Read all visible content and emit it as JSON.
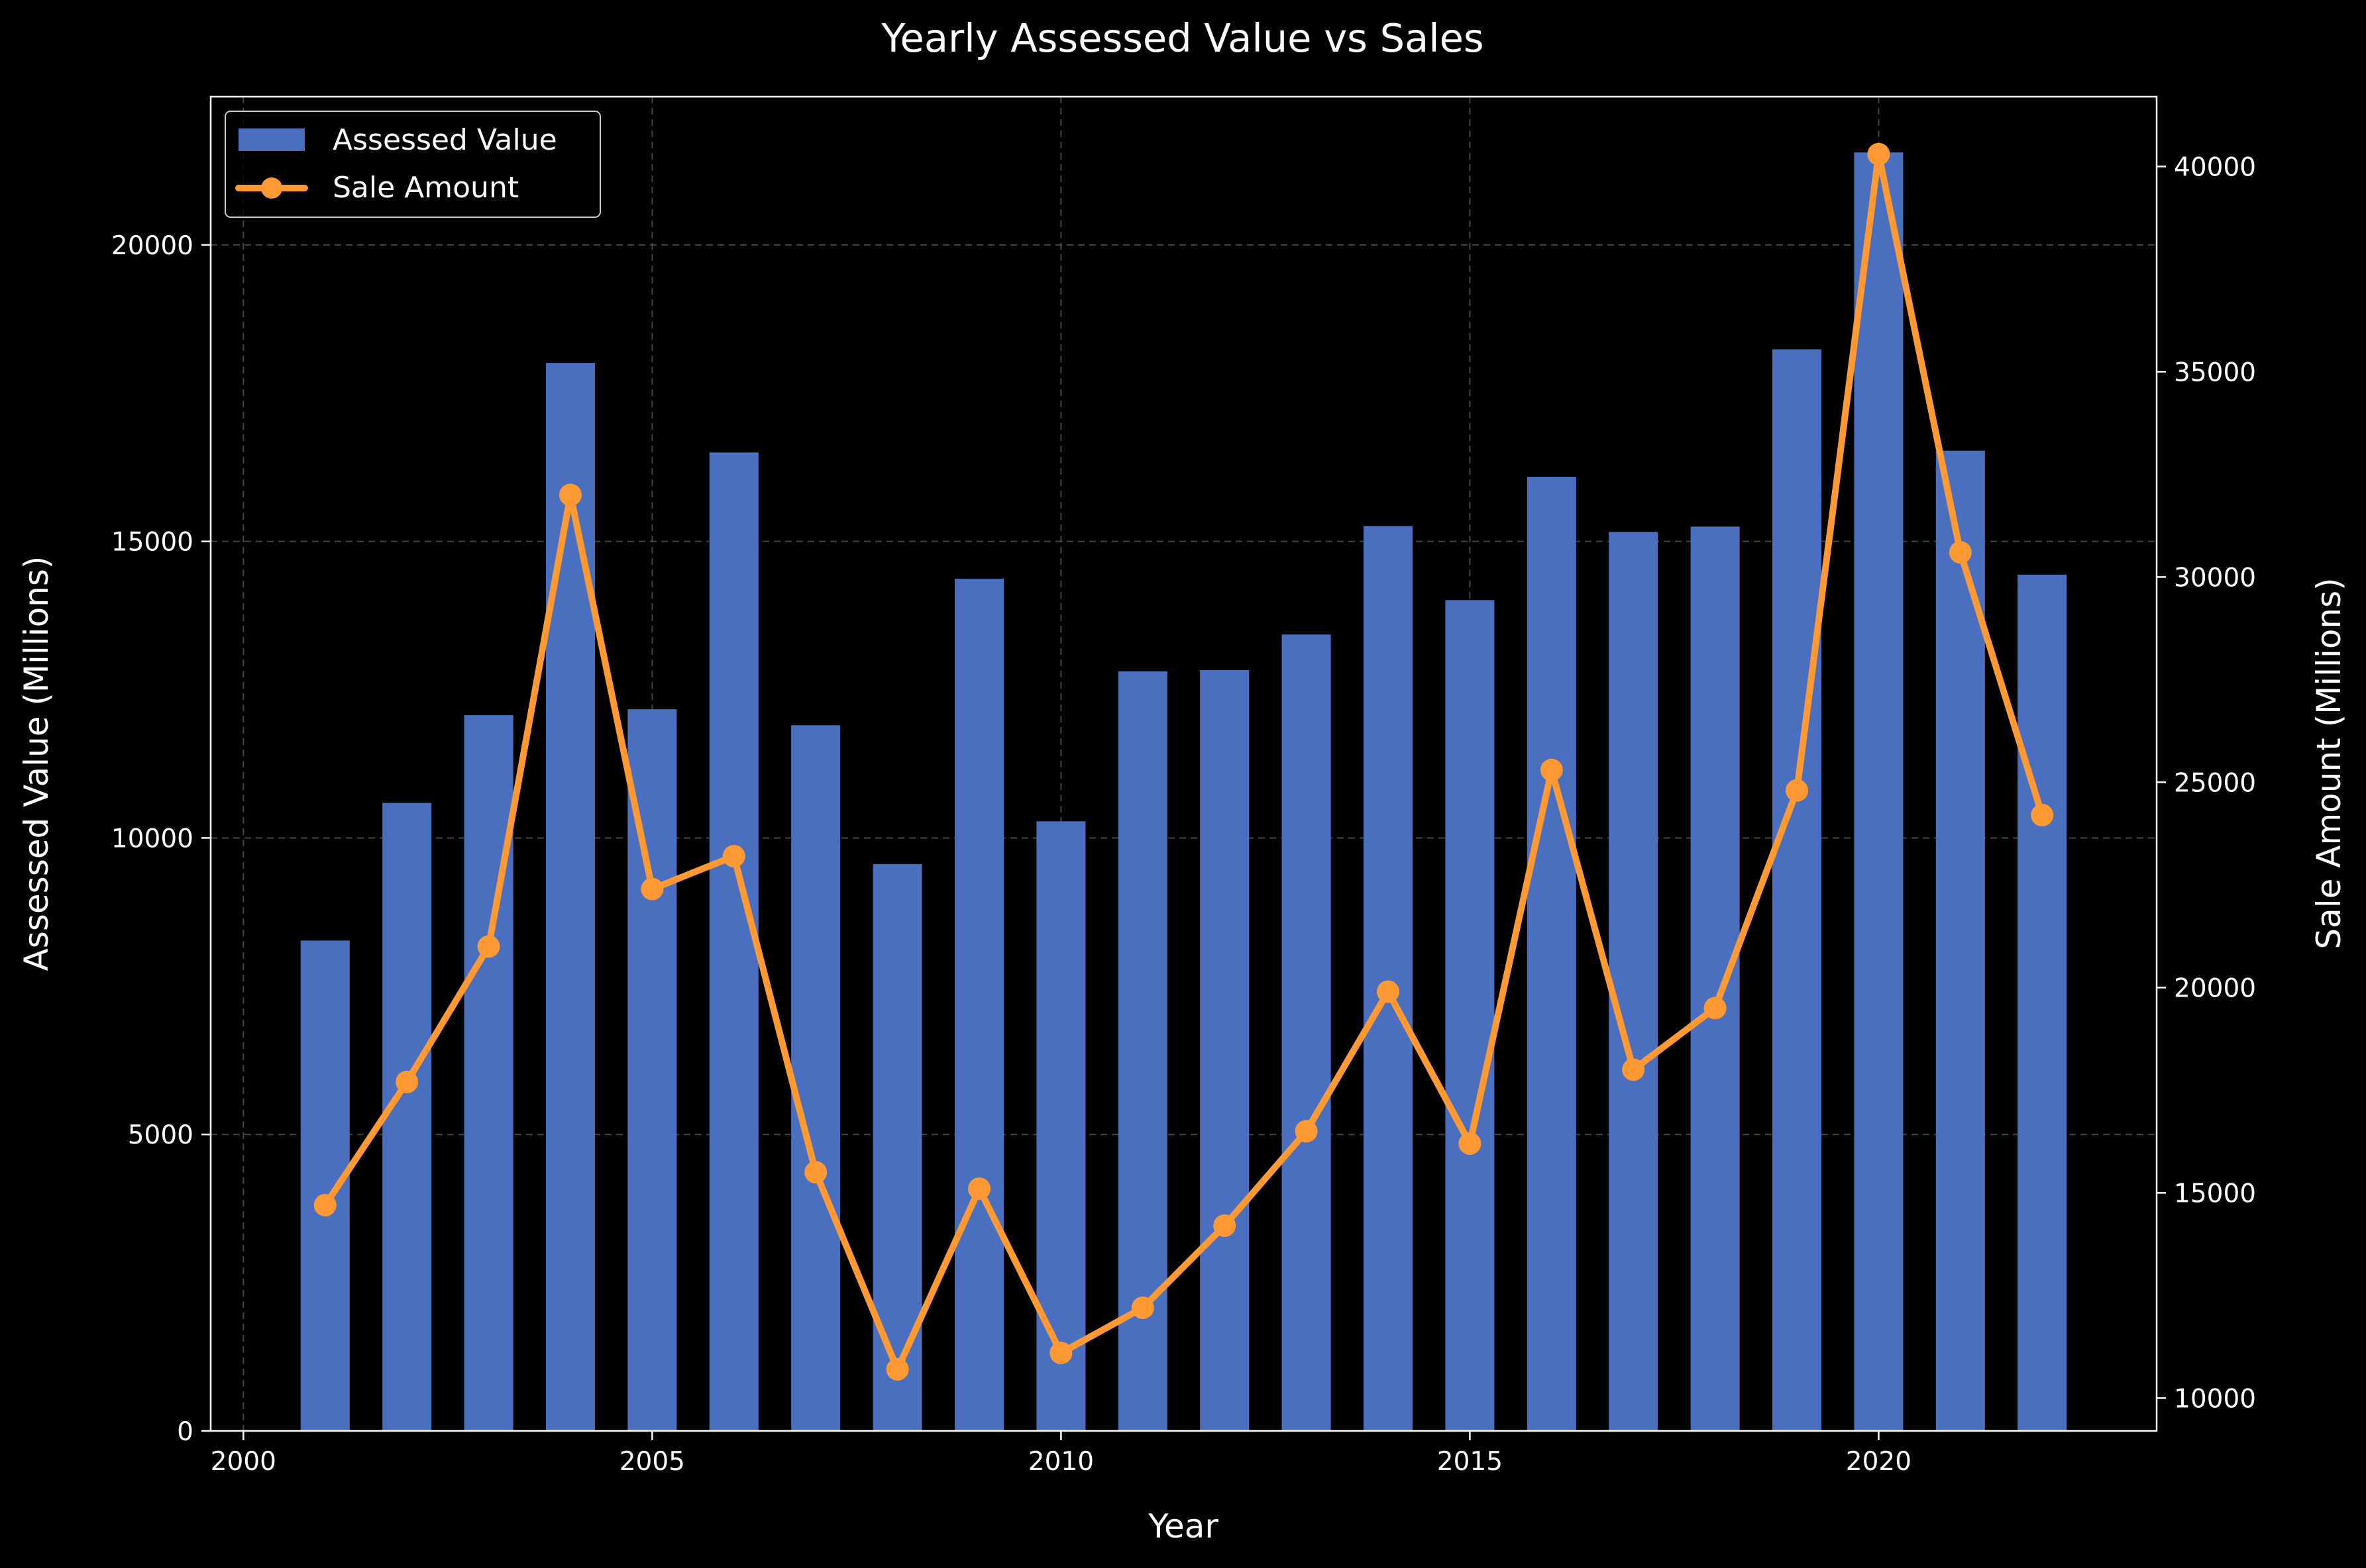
{
  "chart_data": {
    "type": "bar+line",
    "title": "Yearly Assessed Value vs Sales",
    "xlabel": "Year",
    "ylabel": "Assessed Value (Millions)",
    "y2label": "Sale Amount (Millions)",
    "xlim": [
      1999.6,
      2023.4
    ],
    "ylim": [
      0,
      22500
    ],
    "y2lim": [
      9200,
      41700
    ],
    "x_ticks": [
      2000,
      2005,
      2010,
      2015,
      2020
    ],
    "y_ticks": [
      0,
      5000,
      10000,
      15000,
      20000
    ],
    "y2_ticks": [
      10000,
      15000,
      20000,
      25000,
      30000,
      35000,
      40000
    ],
    "grid": true,
    "legend_position": "top-left",
    "categories": [
      2001,
      2002,
      2003,
      2004,
      2005,
      2006,
      2007,
      2008,
      2009,
      2010,
      2011,
      2012,
      2013,
      2014,
      2015,
      2016,
      2017,
      2018,
      2019,
      2020,
      2021,
      2022
    ],
    "series": [
      {
        "name": "Assessed Value",
        "type": "bar",
        "axis": "left",
        "color": "#4a6fbf",
        "values": [
          8270,
          10590,
          12070,
          18010,
          12170,
          16500,
          11900,
          9560,
          14370,
          10280,
          12810,
          12830,
          13430,
          15260,
          14010,
          16090,
          15160,
          15250,
          18240,
          21560,
          16530,
          14440
        ]
      },
      {
        "name": "Sale Amount",
        "type": "line",
        "axis": "right",
        "color": "#ff9933",
        "values": [
          14700,
          17700,
          21000,
          32000,
          22400,
          23200,
          15500,
          10700,
          15100,
          11100,
          12200,
          14200,
          16500,
          19900,
          16200,
          25300,
          18000,
          19500,
          24800,
          40300,
          30600,
          24200
        ]
      }
    ]
  }
}
